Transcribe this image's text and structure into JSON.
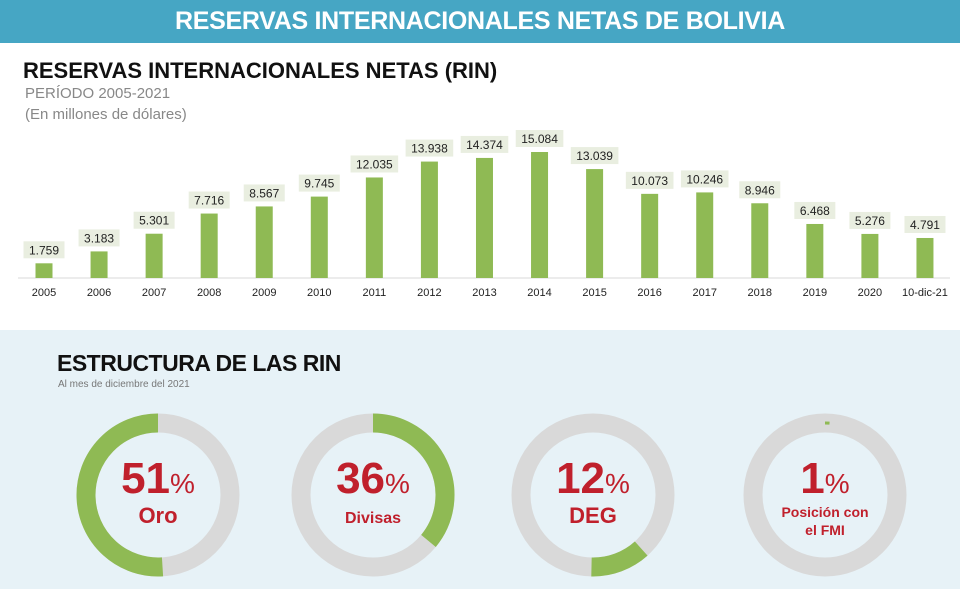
{
  "banner": "RESERVAS INTERNACIONALES NETAS DE BOLIVIA",
  "colors": {
    "banner": "#46a6c4",
    "bar": "#8fba54",
    "donut_fill": "#8fba54",
    "donut_track": "#d9d9d9",
    "percent_text": "#c0202c"
  },
  "chart_data": {
    "type": "bar",
    "title": "RESERVAS INTERNACIONALES NETAS (RIN)",
    "subtitle": "PERÍODO 2005-2021",
    "unit_note": "(En millones de dólares)",
    "categories": [
      "2005",
      "2006",
      "2007",
      "2008",
      "2009",
      "2010",
      "2011",
      "2012",
      "2013",
      "2014",
      "2015",
      "2016",
      "2017",
      "2018",
      "2019",
      "2020",
      "10-dic-21"
    ],
    "values": [
      1759,
      3183,
      5301,
      7716,
      8567,
      9745,
      12035,
      13938,
      14374,
      15084,
      13039,
      10073,
      10246,
      8946,
      6468,
      5276,
      4791
    ],
    "data_labels": [
      "1.759",
      "3.183",
      "5.301",
      "7.716",
      "8.567",
      "9.745",
      "12.035",
      "13.938",
      "14.374",
      "15.084",
      "13.039",
      "10.073",
      "10.246",
      "8.946",
      "6.468",
      "5.276",
      "4.791"
    ],
    "grid": false
  },
  "structure": {
    "title": "ESTRUCTURA DE LAS RIN",
    "subtitle": "Al mes de diciembre del 2021",
    "items": [
      {
        "percent": 51,
        "percent_label": "51",
        "label_lines": [
          "Oro"
        ],
        "direction": "counterclockwise",
        "start_deg": 0
      },
      {
        "percent": 36,
        "percent_label": "36",
        "label_lines": [
          "Divisas"
        ],
        "direction": "clockwise",
        "start_deg": 0
      },
      {
        "percent": 12,
        "percent_label": "12",
        "label_lines": [
          "DEG"
        ],
        "direction": "clockwise",
        "start_deg": 138
      },
      {
        "percent": 1,
        "percent_label": "1",
        "label_lines": [
          "Posición con",
          "el FMI"
        ],
        "direction": "clockwise",
        "start_deg": 0
      }
    ],
    "percent_sign": "%"
  }
}
